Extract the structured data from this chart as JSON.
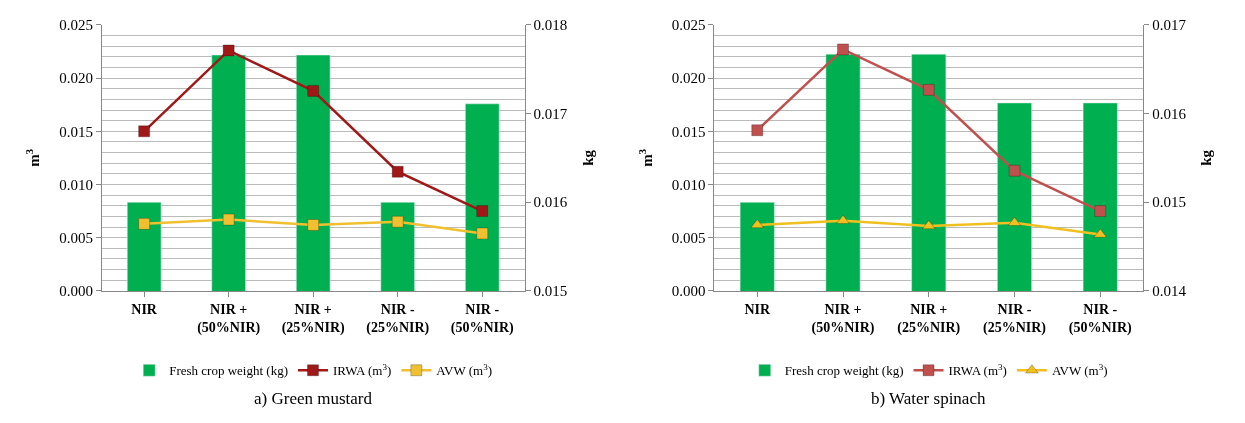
{
  "chart_data": [
    {
      "type": "bar",
      "title": "a) Green mustard",
      "ylabel": "m$^{3}$",
      "y2label": "kg",
      "categories": [
        "NIR",
        "NIR +\n(50%NIR)",
        "NIR +\n(25%NIR)",
        "NIR -\n(25%NIR)",
        "NIR -\n(50%NIR)"
      ],
      "series": [
        {
          "name": "Fresh crop weight (kg)",
          "axis": "y2",
          "color": "#00b050",
          "values": [
            0.016,
            0.01766,
            0.01766,
            0.016,
            0.01711
          ]
        },
        {
          "name": "IRWA (m$^{3}$)",
          "type": "line",
          "color": "#a01818",
          "marker": "square",
          "values": [
            0.015,
            0.0226,
            0.0188,
            0.0112,
            0.0075
          ]
        },
        {
          "name": "AVW (m$^{3}$)",
          "type": "line",
          "color": "#f0c030",
          "marker": "square",
          "values": [
            0.0063,
            0.0067,
            0.0062,
            0.0065,
            0.0054
          ]
        }
      ],
      "ylim": [
        0,
        0.025
      ],
      "yticks": [
        {
          "value": 0,
          "label": "0.000"
        },
        0.005,
        {
          "value": 0.01,
          "label": "0.010"
        },
        0.015,
        {
          "value": 0.02,
          "label": "0.020"
        },
        0.025
      ],
      "y2lim": [
        0.015,
        0.018
      ],
      "y2ticks": [
        0.015,
        0.016,
        0.017,
        0.018
      ],
      "grid": "y",
      "legend": "bottom",
      "line_style": "solid"
    },
    {
      "type": "bar",
      "title": "b) Water spinach",
      "ylabel": "m$^{3}$",
      "y2label": "kg",
      "categories": [
        "NIR",
        "NIR +\n(50%NIR)",
        "NIR +\n(25%NIR)",
        "NIR -\n(25%NIR)",
        "NIR -\n(50%NIR)"
      ],
      "series": [
        {
          "name": "Fresh crop weight (kg)",
          "axis": "y2",
          "color": "#00b050",
          "values": [
            0.015,
            0.01667,
            0.01667,
            0.01612,
            0.01612
          ]
        },
        {
          "name": "IRWA (m$^{3}$)",
          "type": "line",
          "color": "#c0504d",
          "marker": "square",
          "values": [
            0.0151,
            0.0227,
            0.0189,
            0.0113,
            0.0075
          ]
        },
        {
          "name": "AVW (m$^{3}$)",
          "type": "line",
          "color": "#f0c020",
          "marker": "triangle",
          "values": [
            0.0062,
            0.0066,
            0.0061,
            0.0064,
            0.0053
          ]
        }
      ],
      "ylim": [
        0,
        0.025
      ],
      "yticks": [
        {
          "value": 0,
          "label": "0.000"
        },
        0.005,
        {
          "value": 0.01,
          "label": "0.010"
        },
        0.015,
        {
          "value": 0.02,
          "label": "0.020"
        },
        0.025
      ],
      "y2lim": [
        0.014,
        0.017
      ],
      "y2ticks": [
        0.014,
        0.015,
        0.016,
        0.017
      ],
      "grid": "y",
      "legend": "bottom",
      "line_style": "solid"
    }
  ]
}
